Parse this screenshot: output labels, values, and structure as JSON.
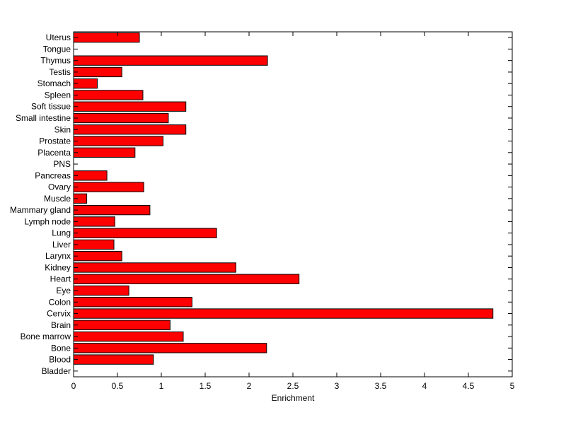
{
  "chart_data": {
    "type": "bar",
    "orientation": "horizontal",
    "xlabel": "Enrichment",
    "ylabel": "",
    "title": "",
    "xlim": [
      0,
      5
    ],
    "xticks": [
      "0",
      "0.5",
      "1",
      "1.5",
      "2",
      "2.5",
      "3",
      "3.5",
      "4",
      "4.5",
      "5"
    ],
    "grid": false,
    "bar_color": "#ff0000",
    "categories": [
      "Uterus",
      "Tongue",
      "Thymus",
      "Testis",
      "Stomach",
      "Spleen",
      "Soft tissue",
      "Small intestine",
      "Skin",
      "Prostate",
      "Placenta",
      "PNS",
      "Pancreas",
      "Ovary",
      "Muscle",
      "Mammary gland",
      "Lymph node",
      "Lung",
      "Liver",
      "Larynx",
      "Kidney",
      "Heart",
      "Eye",
      "Colon",
      "Cervix",
      "Brain",
      "Bone marrow",
      "Bone",
      "Blood",
      "Bladder"
    ],
    "values": [
      0.75,
      0,
      2.21,
      0.55,
      0.27,
      0.79,
      1.28,
      1.08,
      1.28,
      1.02,
      0.7,
      0,
      0.38,
      0.8,
      0.15,
      0.87,
      0.47,
      1.63,
      0.46,
      0.55,
      1.85,
      2.57,
      0.63,
      1.35,
      4.78,
      1.1,
      1.25,
      2.2,
      0.91,
      0
    ]
  }
}
